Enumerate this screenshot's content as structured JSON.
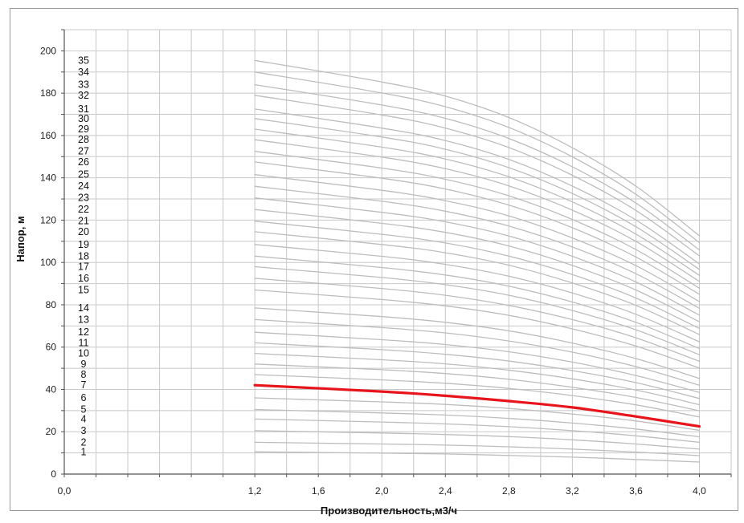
{
  "chart_data": {
    "type": "line",
    "title": "",
    "xlabel": "Производительность,м3/ч",
    "ylabel": "Напор, м",
    "xlim": [
      0.0,
      4.2
    ],
    "ylim": [
      0,
      210
    ],
    "x_ticks": [
      "0,0",
      "1,2",
      "1,6",
      "2,0",
      "2,4",
      "2,8",
      "3,2",
      "3,6",
      "4,0"
    ],
    "x_tick_values": [
      0.0,
      1.2,
      1.6,
      2.0,
      2.4,
      2.8,
      3.2,
      3.6,
      4.0
    ],
    "y_ticks": [
      "0",
      "20",
      "40",
      "60",
      "80",
      "100",
      "120",
      "140",
      "160",
      "180",
      "200"
    ],
    "y_tick_values": [
      0,
      20,
      40,
      60,
      80,
      100,
      120,
      140,
      160,
      180,
      200
    ],
    "grid": true,
    "x": [
      1.2,
      2.0,
      2.4,
      2.8,
      3.2,
      3.6,
      4.0
    ],
    "series": [
      {
        "name": "1",
        "values": [
          10.5,
          9.9,
          9.5,
          8.8,
          8.0,
          6.9,
          5.7
        ]
      },
      {
        "name": "2",
        "values": [
          15.0,
          14.2,
          13.7,
          12.9,
          11.8,
          10.4,
          8.7
        ]
      },
      {
        "name": "3",
        "values": [
          20.5,
          19.4,
          18.7,
          17.7,
          16.2,
          14.2,
          11.8
        ]
      },
      {
        "name": "4",
        "values": [
          26.0,
          24.6,
          23.7,
          22.4,
          20.5,
          18.1,
          15.0
        ]
      },
      {
        "name": "5",
        "values": [
          30.5,
          28.9,
          27.9,
          26.3,
          24.1,
          21.3,
          17.6
        ]
      },
      {
        "name": "6",
        "values": [
          36.0,
          34.1,
          32.9,
          31.0,
          28.4,
          25.1,
          20.7
        ]
      },
      {
        "name": "7",
        "values": [
          42.0,
          39.0,
          37.0,
          34.5,
          31.5,
          27.2,
          22.5
        ]
      },
      {
        "name": "8",
        "values": [
          47.0,
          44.5,
          42.9,
          40.5,
          37.1,
          32.7,
          27.0
        ]
      },
      {
        "name": "9",
        "values": [
          52.0,
          49.3,
          47.5,
          44.8,
          41.0,
          36.2,
          29.9
        ]
      },
      {
        "name": "10",
        "values": [
          57.0,
          54.0,
          52.1,
          49.1,
          45.0,
          39.7,
          32.8
        ]
      },
      {
        "name": "11",
        "values": [
          62.0,
          58.8,
          56.6,
          53.4,
          48.9,
          43.2,
          35.7
        ]
      },
      {
        "name": "12",
        "values": [
          67.0,
          63.5,
          61.2,
          57.8,
          52.9,
          46.6,
          38.6
        ]
      },
      {
        "name": "13",
        "values": [
          73.0,
          69.2,
          66.7,
          62.9,
          57.6,
          50.8,
          42.0
        ]
      },
      {
        "name": "14",
        "values": [
          78.5,
          74.4,
          71.7,
          67.7,
          61.9,
          54.6,
          45.2
        ]
      },
      {
        "name": "15",
        "values": [
          87.0,
          82.5,
          79.5,
          75.0,
          68.6,
          60.5,
          50.1
        ]
      },
      {
        "name": "16",
        "values": [
          92.5,
          87.7,
          84.5,
          79.7,
          73.0,
          64.4,
          53.3
        ]
      },
      {
        "name": "17",
        "values": [
          98.0,
          92.9,
          89.5,
          84.5,
          77.3,
          68.2,
          56.4
        ]
      },
      {
        "name": "18",
        "values": [
          103.0,
          97.6,
          94.1,
          88.8,
          81.3,
          71.7,
          59.3
        ]
      },
      {
        "name": "19",
        "values": [
          108.5,
          102.9,
          99.1,
          93.5,
          85.6,
          75.5,
          62.5
        ]
      },
      {
        "name": "20",
        "values": [
          114.5,
          108.5,
          104.6,
          98.7,
          90.3,
          79.7,
          65.9
        ]
      },
      {
        "name": "21",
        "values": [
          119.5,
          113.3,
          109.2,
          103.0,
          94.3,
          83.2,
          68.8
        ]
      },
      {
        "name": "22",
        "values": [
          125.0,
          118.5,
          114.2,
          107.8,
          98.6,
          87.0,
          72.0
        ]
      },
      {
        "name": "23",
        "values": [
          130.5,
          123.7,
          119.2,
          112.5,
          102.9,
          90.8,
          75.1
        ]
      },
      {
        "name": "24",
        "values": [
          136.0,
          128.9,
          124.2,
          117.2,
          107.3,
          94.7,
          78.3
        ]
      },
      {
        "name": "25",
        "values": [
          141.5,
          134.1,
          129.2,
          122.0,
          111.6,
          98.5,
          81.5
        ]
      },
      {
        "name": "26",
        "values": [
          147.5,
          139.8,
          134.7,
          127.1,
          116.4,
          102.6,
          84.9
        ]
      },
      {
        "name": "27",
        "values": [
          152.5,
          144.6,
          139.3,
          131.5,
          120.3,
          106.1,
          87.8
        ]
      },
      {
        "name": "28",
        "values": [
          158.0,
          149.8,
          144.3,
          136.2,
          124.7,
          110.0,
          91.0
        ]
      },
      {
        "name": "29",
        "values": [
          163.0,
          154.5,
          148.9,
          140.5,
          128.6,
          113.4,
          93.9
        ]
      },
      {
        "name": "30",
        "values": [
          168.0,
          159.3,
          153.5,
          144.8,
          132.6,
          116.9,
          96.7
        ]
      },
      {
        "name": "31",
        "values": [
          172.5,
          163.5,
          157.6,
          148.7,
          136.1,
          120.1,
          99.3
        ]
      },
      {
        "name": "32",
        "values": [
          179.0,
          169.7,
          163.5,
          154.3,
          141.2,
          124.6,
          103.1
        ]
      },
      {
        "name": "33",
        "values": [
          184.0,
          174.4,
          168.1,
          158.6,
          145.2,
          128.1,
          105.9
        ]
      },
      {
        "name": "34",
        "values": [
          190.0,
          180.1,
          173.6,
          163.8,
          149.9,
          132.2,
          109.4
        ]
      },
      {
        "name": "35",
        "values": [
          195.5,
          185.3,
          178.6,
          168.5,
          154.2,
          136.1,
          112.6
        ]
      }
    ],
    "highlight_series": "7",
    "colors": {
      "curve": "#bdbdbd",
      "highlight": "#e8141b",
      "grid": "#c8c8c8",
      "axis": "#555555",
      "frame": "#9a9a9a"
    }
  }
}
